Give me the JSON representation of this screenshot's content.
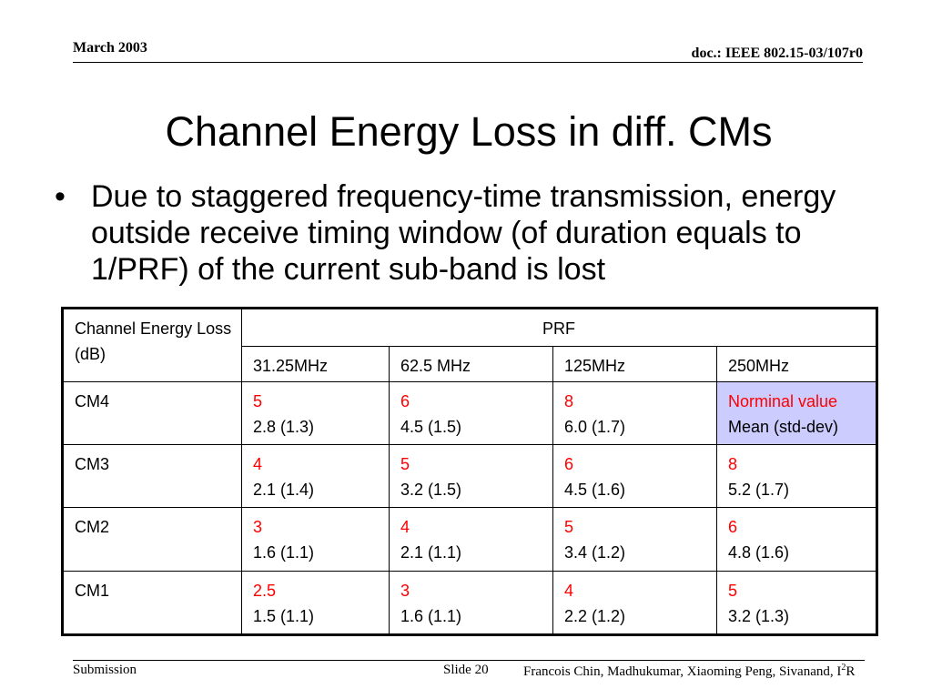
{
  "header": {
    "date": "March 2003",
    "doc_id": "doc.: IEEE 802.15-03/107r0"
  },
  "slide": {
    "title": "Channel Energy Loss in diff. CMs",
    "bullet_symbol": "•",
    "bullet_text": "Due to staggered frequency-time transmission, energy outside receive timing window (of duration equals to 1/PRF) of the current sub-band is lost"
  },
  "table": {
    "corner_label": "Channel Energy Loss (dB)",
    "group_header": "PRF",
    "columns": [
      "31.25MHz",
      "62.5 MHz",
      "125MHz",
      "250MHz"
    ],
    "legend": {
      "nominal_label": "Norminal value",
      "mean_label": "Mean (std-dev)"
    },
    "rows": [
      {
        "label": "CM4",
        "cells": [
          {
            "nominal": "5",
            "mean": "2.8 (1.3)"
          },
          {
            "nominal": "6",
            "mean": "4.5 (1.5)"
          },
          {
            "nominal": "8",
            "mean": "6.0 (1.7)"
          }
        ]
      },
      {
        "label": "CM3",
        "cells": [
          {
            "nominal": "4",
            "mean": "2.1 (1.4)"
          },
          {
            "nominal": "5",
            "mean": "3.2 (1.5)"
          },
          {
            "nominal": "6",
            "mean": "4.5 (1.6)"
          },
          {
            "nominal": "8",
            "mean": "5.2 (1.7)"
          }
        ]
      },
      {
        "label": "CM2",
        "cells": [
          {
            "nominal": "3",
            "mean": "1.6 (1.1)"
          },
          {
            "nominal": "4",
            "mean": "2.1 (1.1)"
          },
          {
            "nominal": "5",
            "mean": "3.4 (1.2)"
          },
          {
            "nominal": "6",
            "mean": "4.8 (1.6)"
          }
        ]
      },
      {
        "label": "CM1",
        "cells": [
          {
            "nominal": "2.5",
            "mean": "1.5 (1.1)"
          },
          {
            "nominal": "3",
            "mean": "1.6 (1.1)"
          },
          {
            "nominal": "4",
            "mean": "2.2 (1.2)"
          },
          {
            "nominal": "5",
            "mean": "3.2 (1.3)"
          }
        ]
      }
    ],
    "colors": {
      "nominal": "#ff0000",
      "legend_bg": "#ccccff"
    }
  },
  "footer": {
    "left": "Submission",
    "slide_label": "Slide 20",
    "authors_prefix": "Francois Chin, Madhukumar, Xiaoming Peng, Sivanand, I",
    "authors_sup": "2",
    "authors_suffix": "R"
  }
}
